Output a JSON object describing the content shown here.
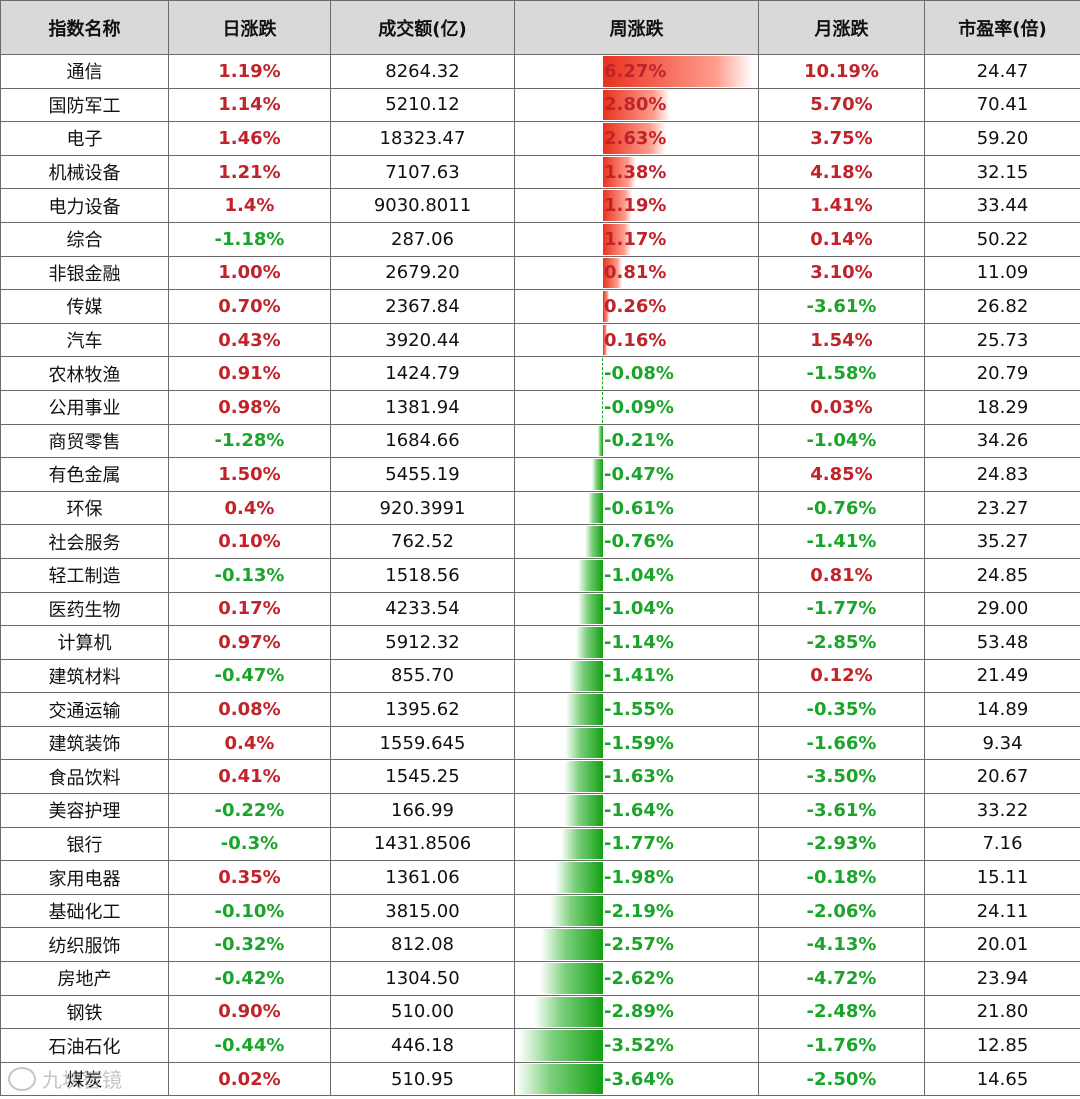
{
  "headers": [
    "指数名称",
    "日涨跌",
    "成交额(亿)",
    "周涨跌",
    "月涨跌",
    "市盈率(倍)"
  ],
  "rows": [
    {
      "name": "通信",
      "day": "1.19%",
      "day_dir": "up",
      "vol": "8264.32",
      "week": "6.27%",
      "week_val": 6.27,
      "month": "10.19%",
      "month_dir": "up",
      "pe": "24.47"
    },
    {
      "name": "国防军工",
      "day": "1.14%",
      "day_dir": "up",
      "vol": "5210.12",
      "week": "2.80%",
      "week_val": 2.8,
      "month": "5.70%",
      "month_dir": "up",
      "pe": "70.41"
    },
    {
      "name": "电子",
      "day": "1.46%",
      "day_dir": "up",
      "vol": "18323.47",
      "week": "2.63%",
      "week_val": 2.63,
      "month": "3.75%",
      "month_dir": "up",
      "pe": "59.20"
    },
    {
      "name": "机械设备",
      "day": "1.21%",
      "day_dir": "up",
      "vol": "7107.63",
      "week": "1.38%",
      "week_val": 1.38,
      "month": "4.18%",
      "month_dir": "up",
      "pe": "32.15"
    },
    {
      "name": "电力设备",
      "day": "1.4%",
      "day_dir": "up",
      "vol": "9030.8011",
      "week": "1.19%",
      "week_val": 1.19,
      "month": "1.41%",
      "month_dir": "up",
      "pe": "33.44"
    },
    {
      "name": "综合",
      "day": "-1.18%",
      "day_dir": "down",
      "vol": "287.06",
      "week": "1.17%",
      "week_val": 1.17,
      "month": "0.14%",
      "month_dir": "up",
      "pe": "50.22"
    },
    {
      "name": "非银金融",
      "day": "1.00%",
      "day_dir": "up",
      "vol": "2679.20",
      "week": "0.81%",
      "week_val": 0.81,
      "month": "3.10%",
      "month_dir": "up",
      "pe": "11.09"
    },
    {
      "name": "传媒",
      "day": "0.70%",
      "day_dir": "up",
      "vol": "2367.84",
      "week": "0.26%",
      "week_val": 0.26,
      "month": "-3.61%",
      "month_dir": "down",
      "pe": "26.82"
    },
    {
      "name": "汽车",
      "day": "0.43%",
      "day_dir": "up",
      "vol": "3920.44",
      "week": "0.16%",
      "week_val": 0.16,
      "month": "1.54%",
      "month_dir": "up",
      "pe": "25.73"
    },
    {
      "name": "农林牧渔",
      "day": "0.91%",
      "day_dir": "up",
      "vol": "1424.79",
      "week": "-0.08%",
      "week_val": -0.08,
      "month": "-1.58%",
      "month_dir": "down",
      "pe": "20.79"
    },
    {
      "name": "公用事业",
      "day": "0.98%",
      "day_dir": "up",
      "vol": "1381.94",
      "week": "-0.09%",
      "week_val": -0.09,
      "month": "0.03%",
      "month_dir": "up",
      "pe": "18.29"
    },
    {
      "name": "商贸零售",
      "day": "-1.28%",
      "day_dir": "down",
      "vol": "1684.66",
      "week": "-0.21%",
      "week_val": -0.21,
      "month": "-1.04%",
      "month_dir": "down",
      "pe": "34.26"
    },
    {
      "name": "有色金属",
      "day": "1.50%",
      "day_dir": "up",
      "vol": "5455.19",
      "week": "-0.47%",
      "week_val": -0.47,
      "month": "4.85%",
      "month_dir": "up",
      "pe": "24.83"
    },
    {
      "name": "环保",
      "day": "0.4%",
      "day_dir": "up",
      "vol": "920.3991",
      "week": "-0.61%",
      "week_val": -0.61,
      "month": "-0.76%",
      "month_dir": "down",
      "pe": "23.27"
    },
    {
      "name": "社会服务",
      "day": "0.10%",
      "day_dir": "up",
      "vol": "762.52",
      "week": "-0.76%",
      "week_val": -0.76,
      "month": "-1.41%",
      "month_dir": "down",
      "pe": "35.27"
    },
    {
      "name": "轻工制造",
      "day": "-0.13%",
      "day_dir": "down",
      "vol": "1518.56",
      "week": "-1.04%",
      "week_val": -1.04,
      "month": "0.81%",
      "month_dir": "up",
      "pe": "24.85"
    },
    {
      "name": "医药生物",
      "day": "0.17%",
      "day_dir": "up",
      "vol": "4233.54",
      "week": "-1.04%",
      "week_val": -1.04,
      "month": "-1.77%",
      "month_dir": "down",
      "pe": "29.00"
    },
    {
      "name": "计算机",
      "day": "0.97%",
      "day_dir": "up",
      "vol": "5912.32",
      "week": "-1.14%",
      "week_val": -1.14,
      "month": "-2.85%",
      "month_dir": "down",
      "pe": "53.48"
    },
    {
      "name": "建筑材料",
      "day": "-0.47%",
      "day_dir": "down",
      "vol": "855.70",
      "week": "-1.41%",
      "week_val": -1.41,
      "month": "0.12%",
      "month_dir": "up",
      "pe": "21.49"
    },
    {
      "name": "交通运输",
      "day": "0.08%",
      "day_dir": "up",
      "vol": "1395.62",
      "week": "-1.55%",
      "week_val": -1.55,
      "month": "-0.35%",
      "month_dir": "down",
      "pe": "14.89"
    },
    {
      "name": "建筑装饰",
      "day": "0.4%",
      "day_dir": "up",
      "vol": "1559.645",
      "week": "-1.59%",
      "week_val": -1.59,
      "month": "-1.66%",
      "month_dir": "down",
      "pe": "9.34"
    },
    {
      "name": "食品饮料",
      "day": "0.41%",
      "day_dir": "up",
      "vol": "1545.25",
      "week": "-1.63%",
      "week_val": -1.63,
      "month": "-3.50%",
      "month_dir": "down",
      "pe": "20.67"
    },
    {
      "name": "美容护理",
      "day": "-0.22%",
      "day_dir": "down",
      "vol": "166.99",
      "week": "-1.64%",
      "week_val": -1.64,
      "month": "-3.61%",
      "month_dir": "down",
      "pe": "33.22"
    },
    {
      "name": "银行",
      "day": "-0.3%",
      "day_dir": "down",
      "vol": "1431.8506",
      "week": "-1.77%",
      "week_val": -1.77,
      "month": "-2.93%",
      "month_dir": "down",
      "pe": "7.16"
    },
    {
      "name": "家用电器",
      "day": "0.35%",
      "day_dir": "up",
      "vol": "1361.06",
      "week": "-1.98%",
      "week_val": -1.98,
      "month": "-0.18%",
      "month_dir": "down",
      "pe": "15.11"
    },
    {
      "name": "基础化工",
      "day": "-0.10%",
      "day_dir": "down",
      "vol": "3815.00",
      "week": "-2.19%",
      "week_val": -2.19,
      "month": "-2.06%",
      "month_dir": "down",
      "pe": "24.11"
    },
    {
      "name": "纺织服饰",
      "day": "-0.32%",
      "day_dir": "down",
      "vol": "812.08",
      "week": "-2.57%",
      "week_val": -2.57,
      "month": "-4.13%",
      "month_dir": "down",
      "pe": "20.01"
    },
    {
      "name": "房地产",
      "day": "-0.42%",
      "day_dir": "down",
      "vol": "1304.50",
      "week": "-2.62%",
      "week_val": -2.62,
      "month": "-4.72%",
      "month_dir": "down",
      "pe": "23.94"
    },
    {
      "name": "钢铁",
      "day": "0.90%",
      "day_dir": "up",
      "vol": "510.00",
      "week": "-2.89%",
      "week_val": -2.89,
      "month": "-2.48%",
      "month_dir": "down",
      "pe": "21.80"
    },
    {
      "name": "石油石化",
      "day": "-0.44%",
      "day_dir": "down",
      "vol": "446.18",
      "week": "-3.52%",
      "week_val": -3.52,
      "month": "-1.76%",
      "month_dir": "down",
      "pe": "12.85"
    },
    {
      "name": "煤炭",
      "day": "0.02%",
      "day_dir": "up",
      "vol": "510.95",
      "week": "-3.64%",
      "week_val": -3.64,
      "month": "-2.50%",
      "month_dir": "down",
      "pe": "14.65"
    }
  ],
  "colors": {
    "up": "#c0232a",
    "down": "#1aa52a",
    "header_bg": "#d9d9d9",
    "bar_pos": "#e8321e",
    "bar_neg": "#13a013"
  },
  "watermark": {
    "text": "九块智镜",
    "icon": "logo-icon"
  }
}
